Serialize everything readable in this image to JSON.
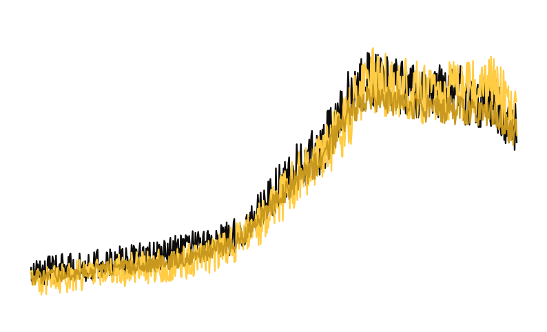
{
  "chart_data": {
    "type": "line",
    "title": "",
    "xlabel": "",
    "ylabel": "",
    "axes_visible": false,
    "grid": false,
    "legend": "none",
    "xlim": [
      0,
      100
    ],
    "ylim": [
      0,
      100
    ],
    "x": [
      0,
      5,
      10,
      15,
      20,
      25,
      30,
      35,
      40,
      45,
      50,
      55,
      60,
      65,
      70,
      75,
      80,
      85,
      90,
      95,
      100
    ],
    "series": [
      {
        "color": "#0d0c0a",
        "values": [
          13,
          15,
          16,
          17,
          18,
          19,
          21,
          23,
          25,
          30,
          41,
          50,
          57,
          73,
          80,
          78,
          75,
          76,
          74,
          73,
          64
        ],
        "noise": 10
      },
      {
        "color": "#ffcc44",
        "values": [
          11,
          12,
          13,
          14,
          15,
          16,
          17,
          19,
          22,
          27,
          36,
          46,
          52,
          66,
          80,
          77,
          76,
          75,
          75,
          77,
          66
        ],
        "noise": 11
      },
      {
        "color": "#c9991f",
        "values": [
          12,
          13,
          14,
          15,
          16,
          17,
          18,
          20,
          23,
          28,
          38,
          46,
          52,
          68,
          74,
          72,
          70,
          70,
          69,
          68,
          61
        ],
        "noise": 5
      }
    ]
  }
}
